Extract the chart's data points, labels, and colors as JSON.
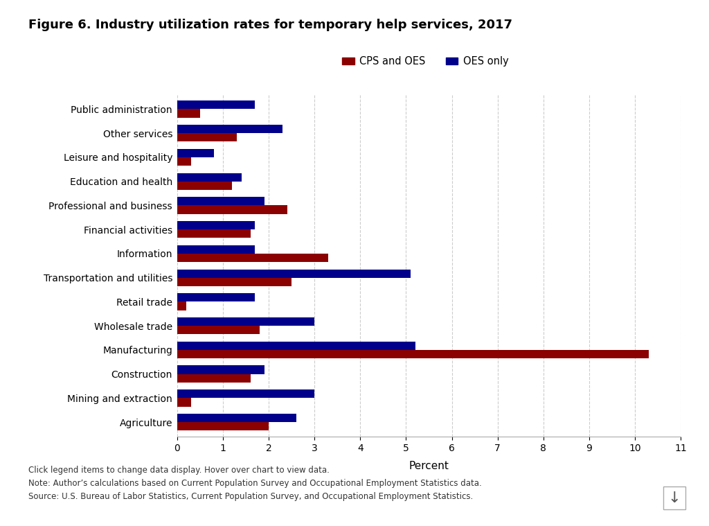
{
  "title": "Figure 6. Industry utilization rates for temporary help services, 2017",
  "xlabel": "Percent",
  "xlim": [
    0,
    11
  ],
  "xticks": [
    0,
    1,
    2,
    3,
    4,
    5,
    6,
    7,
    8,
    9,
    10,
    11
  ],
  "categories": [
    "Agriculture",
    "Mining and extraction",
    "Construction",
    "Manufacturing",
    "Wholesale trade",
    "Retail trade",
    "Transportation and utilities",
    "Information",
    "Financial activities",
    "Professional and business",
    "Education and health",
    "Leisure and hospitality",
    "Other services",
    "Public administration"
  ],
  "cps_oes": [
    2.0,
    0.3,
    1.6,
    10.3,
    1.8,
    0.2,
    2.5,
    3.3,
    1.6,
    2.4,
    1.2,
    0.3,
    1.3,
    0.5
  ],
  "oes_only": [
    2.6,
    3.0,
    1.9,
    5.2,
    3.0,
    1.7,
    5.1,
    1.7,
    1.7,
    1.9,
    1.4,
    0.8,
    2.3,
    1.7
  ],
  "color_cps": "#8B0000",
  "color_oes": "#00008B",
  "bar_height": 0.35,
  "legend_labels": [
    "CPS and OES",
    "OES only"
  ],
  "footer_lines": [
    "Click legend items to change data display. Hover over chart to view data.",
    "Note: Author’s calculations based on Current Population Survey and Occupational Employment Statistics data.",
    "Source: U.S. Bureau of Labor Statistics, Current Population Survey, and Occupational Employment Statistics."
  ],
  "background_color": "#ffffff",
  "grid_color": "#cccccc"
}
